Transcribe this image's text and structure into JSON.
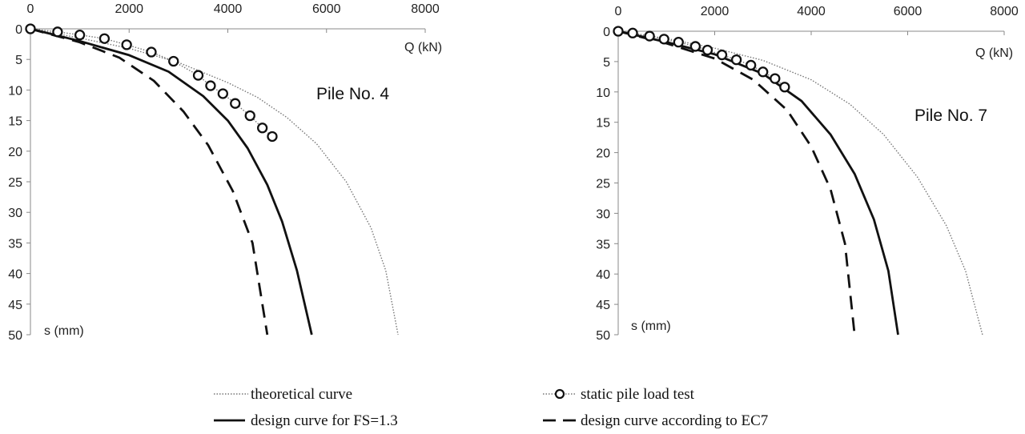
{
  "chart_data": [
    {
      "type": "line",
      "title": "Pile No. 4",
      "xlabel": "Q (kN)",
      "ylabel": "s (mm)",
      "xlim": [
        0,
        8000
      ],
      "ylim": [
        0,
        50
      ],
      "y_inverted": true,
      "x_axis_position": "top",
      "x_ticks": [
        "0",
        "2000",
        "4000",
        "6000",
        "8000"
      ],
      "y_ticks": [
        "0",
        "5",
        "10",
        "15",
        "20",
        "25",
        "30",
        "35",
        "40",
        "45",
        "50"
      ],
      "series": [
        {
          "name": "theoretical curve",
          "style": "dotted",
          "x": [
            0,
            1000,
            2000,
            3000,
            4000,
            4600,
            5200,
            5800,
            6400,
            6900,
            7200,
            7450
          ],
          "y": [
            0,
            1.5,
            3.2,
            5.5,
            8.8,
            11.2,
            14.5,
            18.8,
            25,
            32.5,
            39.5,
            50
          ]
        },
        {
          "name": "static pile load test",
          "style": "markers-dotted",
          "x": [
            0,
            550,
            1000,
            1500,
            1950,
            2450,
            2900,
            3400,
            3650,
            3900,
            4150,
            4450,
            4700,
            4900
          ],
          "y": [
            0,
            0.5,
            1.0,
            1.6,
            2.6,
            3.8,
            5.3,
            7.6,
            9.3,
            10.6,
            12.2,
            14.2,
            16.2,
            17.6
          ]
        },
        {
          "name": "design curve for FS=1.3",
          "style": "solid",
          "x": [
            0,
            1000,
            2000,
            2800,
            3500,
            4000,
            4400,
            4800,
            5100,
            5400,
            5700
          ],
          "y": [
            0,
            2.0,
            4.3,
            7.0,
            11.0,
            15.0,
            19.5,
            25.5,
            31.5,
            39.5,
            50
          ]
        },
        {
          "name": "design curve according to EC7",
          "style": "dashed",
          "x": [
            0,
            1000,
            1800,
            2500,
            3100,
            3600,
            4100,
            4500,
            4800
          ],
          "y": [
            0,
            2.2,
            4.7,
            8.5,
            13.5,
            19.0,
            26.5,
            35.0,
            50
          ]
        }
      ]
    },
    {
      "type": "line",
      "title": "Pile No. 7",
      "xlabel": "Q (kN)",
      "ylabel": "s (mm)",
      "xlim": [
        0,
        8000
      ],
      "ylim": [
        0,
        50
      ],
      "y_inverted": true,
      "x_axis_position": "top",
      "x_ticks": [
        "0",
        "2000",
        "4000",
        "6000",
        "8000"
      ],
      "y_ticks": [
        "0",
        "5",
        "10",
        "15",
        "20",
        "25",
        "30",
        "35",
        "40",
        "45",
        "50"
      ],
      "series": [
        {
          "name": "theoretical curve",
          "style": "dotted",
          "x": [
            0,
            1000,
            2000,
            3000,
            4000,
            4800,
            5500,
            6200,
            6800,
            7200,
            7550
          ],
          "y": [
            0,
            1.2,
            2.8,
            4.8,
            8.0,
            12.0,
            17.0,
            24.0,
            32.0,
            39.5,
            50
          ]
        },
        {
          "name": "static pile load test",
          "style": "markers-dotted",
          "x": [
            0,
            300,
            650,
            950,
            1250,
            1600,
            1850,
            2150,
            2450,
            2750,
            3000,
            3250,
            3450
          ],
          "y": [
            0,
            0.3,
            0.8,
            1.3,
            1.8,
            2.5,
            3.1,
            3.9,
            4.7,
            5.6,
            6.7,
            7.8,
            9.2
          ]
        },
        {
          "name": "design curve for FS=1.3",
          "style": "solid",
          "x": [
            0,
            1000,
            2000,
            3000,
            3800,
            4400,
            4900,
            5300,
            5600,
            5800
          ],
          "y": [
            0,
            1.8,
            3.8,
            7.0,
            11.5,
            17.0,
            23.5,
            31.0,
            39.5,
            50
          ]
        },
        {
          "name": "design curve according to EC7",
          "style": "dashed",
          "x": [
            0,
            1000,
            2000,
            2800,
            3500,
            4000,
            4400,
            4700,
            4900
          ],
          "y": [
            0,
            2.0,
            4.5,
            8.0,
            13.0,
            19.0,
            26.0,
            35.0,
            50
          ]
        }
      ]
    }
  ],
  "legend": [
    {
      "label": "theoretical curve",
      "style": "dotted"
    },
    {
      "label": "static pile load test",
      "style": "markers-dotted"
    },
    {
      "label": "design curve for FS=1.3",
      "style": "solid"
    },
    {
      "label": "design curve according to EC7",
      "style": "dashed"
    }
  ]
}
